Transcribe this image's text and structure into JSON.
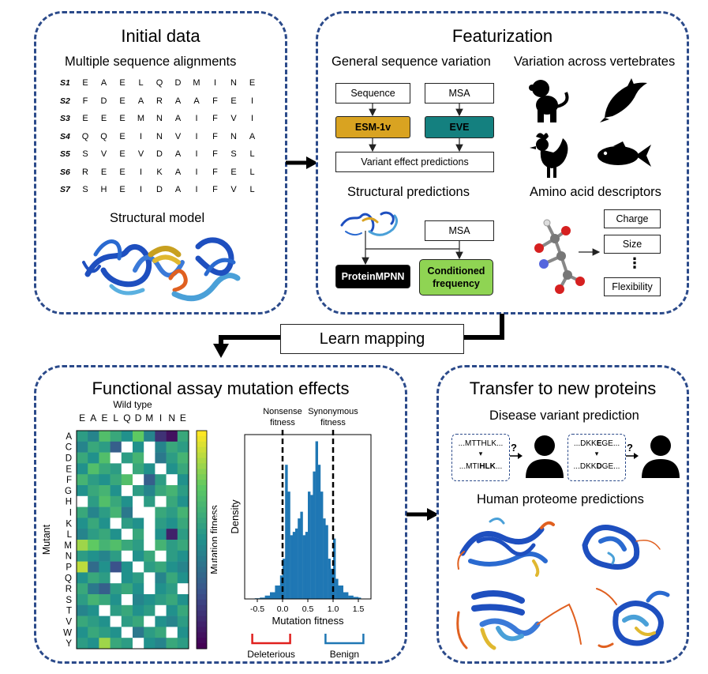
{
  "initial": {
    "title": "Initial data",
    "msa_heading": "Multiple sequence alignments",
    "sequences": [
      {
        "name": "S1",
        "residues": [
          "E",
          "A",
          "E",
          "L",
          "Q",
          "D",
          "M",
          "I",
          "N",
          "E"
        ]
      },
      {
        "name": "S2",
        "residues": [
          "F",
          "D",
          "E",
          "A",
          "R",
          "A",
          "A",
          "F",
          "E",
          "I"
        ]
      },
      {
        "name": "S3",
        "residues": [
          "E",
          "E",
          "E",
          "M",
          "N",
          "A",
          "I",
          "F",
          "V",
          "I"
        ]
      },
      {
        "name": "S4",
        "residues": [
          "Q",
          "Q",
          "E",
          "I",
          "N",
          "V",
          "I",
          "F",
          "N",
          "A"
        ]
      },
      {
        "name": "S5",
        "residues": [
          "S",
          "V",
          "E",
          "V",
          "D",
          "A",
          "I",
          "F",
          "S",
          "L"
        ]
      },
      {
        "name": "S6",
        "residues": [
          "R",
          "E",
          "E",
          "I",
          "K",
          "A",
          "I",
          "F",
          "E",
          "L"
        ]
      },
      {
        "name": "S7",
        "residues": [
          "S",
          "H",
          "E",
          "I",
          "D",
          "A",
          "I",
          "F",
          "V",
          "L"
        ]
      }
    ],
    "structure_heading": "Structural model"
  },
  "featurization": {
    "title": "Featurization",
    "general_heading": "General sequence variation",
    "sequence_box": "Sequence",
    "msa_box": "MSA",
    "esm_box": "ESM-1v",
    "eve_box": "EVE",
    "vep_box": "Variant effect predictions",
    "vertebrates_heading": "Variation across vertebrates",
    "structural_heading": "Structural predictions",
    "msa_box2": "MSA",
    "mpnn_box": "ProteinMPNN",
    "cond_box_line1": "Conditioned",
    "cond_box_line2": "frequency",
    "descriptors_heading": "Amino acid descriptors",
    "desc_charge": "Charge",
    "desc_size": "Size",
    "desc_dots": "⋮",
    "desc_flex": "Flexibility"
  },
  "learn_mapping": "Learn mapping",
  "functional": {
    "title": "Functional assay mutation effects",
    "wild_type_label": "Wild type",
    "wild_type": [
      "E",
      "A",
      "E",
      "L",
      "Q",
      "D",
      "M",
      "I",
      "N",
      "E"
    ],
    "mutants": [
      "A",
      "C",
      "D",
      "E",
      "F",
      "G",
      "H",
      "I",
      "K",
      "L",
      "M",
      "N",
      "P",
      "Q",
      "R",
      "S",
      "T",
      "V",
      "W",
      "Y"
    ],
    "mutant_axis": "Mutant",
    "colorbar_label": "Mutation fitness",
    "nonsense_label_1": "Nonsense",
    "nonsense_label_2": "fitness",
    "synonymous_label_1": "Synonymous",
    "synonymous_label_2": "fitness",
    "deleterious": "Deleterious",
    "benign": "Benign"
  },
  "transfer": {
    "title": "Transfer to new proteins",
    "disease_heading": "Disease variant prediction",
    "v1_top_pre": "...MTTHLK...",
    "v1_bot_pre": "...MTI",
    "v1_bot_bold": "HLK",
    "v1_bot_post": "...",
    "v2_top_pre": "...DKK",
    "v2_top_bold": "E",
    "v2_top_post": "GE...",
    "v2_bot_pre": "...DKK",
    "v2_bot_bold": "D",
    "v2_bot_post": "GE...",
    "question": "?",
    "proteome_heading": "Human proteome predictions"
  },
  "chart_data": [
    {
      "type": "heatmap",
      "xlabel": "Wild type",
      "ylabel": "Mutant",
      "colorbar": "Mutation fitness",
      "x": [
        "E",
        "A",
        "E",
        "L",
        "Q",
        "D",
        "M",
        "I",
        "N",
        "E"
      ],
      "y": [
        "A",
        "C",
        "D",
        "E",
        "F",
        "G",
        "H",
        "I",
        "K",
        "L",
        "M",
        "N",
        "P",
        "Q",
        "R",
        "S",
        "T",
        "V",
        "W",
        "Y"
      ],
      "values": [
        [
          0.55,
          0.45,
          0.7,
          0.6,
          0.5,
          0.75,
          0.45,
          0.15,
          0.05,
          0.6
        ],
        [
          0.45,
          0.6,
          0.55,
          0.3,
          null,
          0.5,
          null,
          0.45,
          0.6,
          0.55
        ],
        [
          0.6,
          0.5,
          0.7,
          null,
          0.55,
          0.65,
          null,
          0.4,
          0.55,
          0.65
        ],
        [
          0.5,
          0.7,
          0.6,
          0.55,
          null,
          0.6,
          0.5,
          null,
          0.5,
          0.6
        ],
        [
          0.65,
          0.55,
          0.5,
          0.6,
          0.7,
          null,
          0.3,
          0.55,
          null,
          0.5
        ],
        [
          0.5,
          0.6,
          0.65,
          0.5,
          null,
          0.55,
          0.45,
          0.6,
          0.65,
          0.55
        ],
        [
          null,
          0.55,
          0.7,
          0.6,
          0.5,
          null,
          0.55,
          null,
          0.6,
          0.5
        ],
        [
          0.6,
          0.45,
          0.55,
          0.65,
          0.4,
          null,
          null,
          0.6,
          0.55,
          0.65
        ],
        [
          0.5,
          0.6,
          0.5,
          null,
          0.55,
          0.5,
          null,
          0.55,
          0.5,
          0.6
        ],
        [
          0.45,
          0.55,
          0.6,
          0.5,
          null,
          0.6,
          null,
          0.5,
          0.1,
          0.55
        ],
        [
          0.85,
          0.75,
          0.65,
          0.7,
          0.6,
          0.55,
          null,
          0.65,
          0.55,
          0.6
        ],
        [
          0.55,
          0.5,
          0.45,
          0.55,
          null,
          0.5,
          0.6,
          null,
          0.55,
          0.5
        ],
        [
          0.9,
          0.35,
          0.5,
          0.25,
          0.5,
          null,
          0.55,
          0.6,
          0.5,
          0.45
        ],
        [
          0.5,
          0.6,
          0.55,
          null,
          0.5,
          0.55,
          null,
          0.45,
          0.6,
          0.5
        ],
        [
          0.6,
          0.4,
          0.3,
          0.55,
          0.6,
          0.5,
          null,
          0.5,
          0.55,
          null
        ],
        [
          0.55,
          0.65,
          0.6,
          0.5,
          null,
          0.45,
          0.5,
          0.55,
          0.6,
          0.5
        ],
        [
          0.45,
          0.5,
          null,
          0.55,
          0.6,
          0.5,
          0.55,
          null,
          0.5,
          0.6
        ],
        [
          0.6,
          0.55,
          0.5,
          null,
          0.55,
          0.6,
          null,
          0.5,
          0.45,
          0.55
        ],
        [
          0.5,
          0.6,
          0.55,
          0.5,
          null,
          0.4,
          0.55,
          0.6,
          null,
          0.5
        ],
        [
          0.55,
          0.5,
          0.85,
          0.6,
          0.55,
          null,
          0.5,
          0.45,
          0.6,
          0.55
        ]
      ]
    },
    {
      "type": "bar",
      "subtype": "histogram",
      "xlabel": "Mutation fitness",
      "ylabel": "Density",
      "xlim": [
        -0.75,
        1.75
      ],
      "xticks": [
        "-0.5",
        "0.0",
        "0.5",
        "1.0",
        "1.5"
      ],
      "bin_starts": [
        -0.55,
        -0.45,
        -0.35,
        -0.25,
        -0.15,
        -0.05,
        0.0,
        0.05,
        0.1,
        0.15,
        0.2,
        0.25,
        0.3,
        0.35,
        0.4,
        0.45,
        0.5,
        0.55,
        0.6,
        0.65,
        0.7,
        0.75,
        0.8,
        0.85,
        0.9,
        0.95,
        1.0,
        1.05,
        1.1,
        1.2,
        1.3,
        1.4,
        1.5
      ],
      "bin_width": 0.05,
      "density": [
        0.01,
        0.02,
        0.05,
        0.1,
        0.2,
        0.35,
        0.6,
        2.0,
        1.6,
        0.95,
        1.0,
        1.05,
        1.2,
        1.3,
        0.95,
        1.0,
        1.6,
        1.55,
        1.9,
        2.35,
        2.0,
        1.6,
        1.2,
        1.1,
        0.6,
        0.45,
        0.9,
        0.3,
        0.2,
        0.1,
        0.05,
        0.03,
        0.02
      ],
      "vlines": [
        {
          "x": 0.0,
          "label": "Nonsense fitness"
        },
        {
          "x": 1.0,
          "label": "Synonymous fitness"
        }
      ]
    }
  ]
}
